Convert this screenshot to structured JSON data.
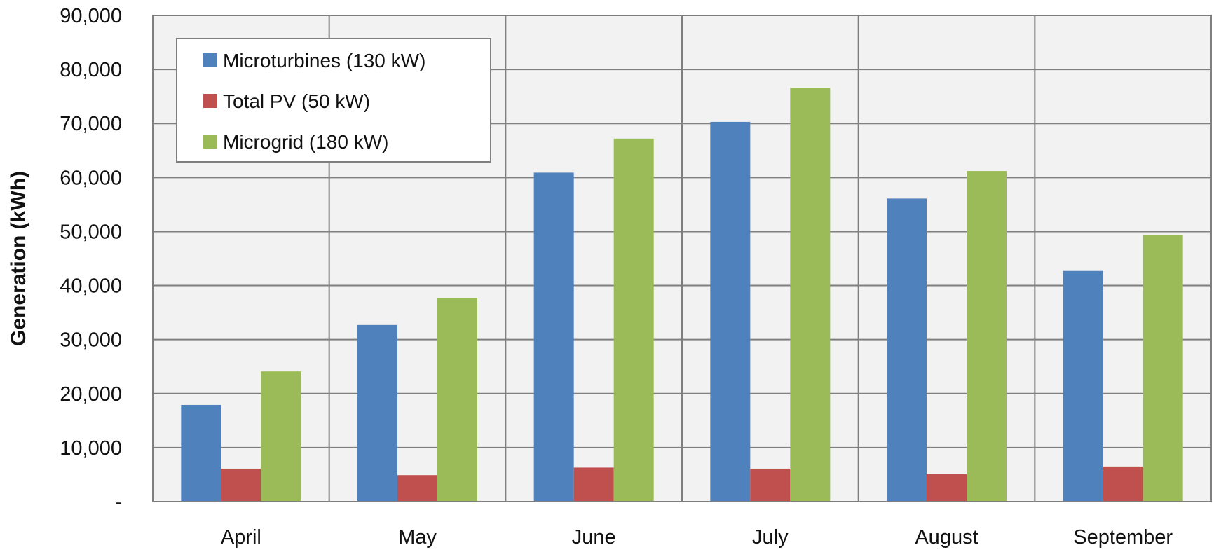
{
  "chart_data": {
    "type": "bar",
    "title": "",
    "xlabel": "",
    "ylabel": "Generation (kWh)",
    "categories": [
      "April",
      "May",
      "June",
      "July",
      "August",
      "September"
    ],
    "series": [
      {
        "name": "Microturbines (130 kW)",
        "color": "#4f81bd",
        "values": [
          17900,
          32700,
          60900,
          70300,
          56100,
          42700
        ]
      },
      {
        "name": "Total PV (50 kW)",
        "color": "#c0504d",
        "values": [
          6100,
          4900,
          6300,
          6100,
          5100,
          6500
        ]
      },
      {
        "name": "Microgrid (180 kW)",
        "color": "#9bbb59",
        "values": [
          24100,
          37700,
          67200,
          76600,
          61200,
          49300
        ]
      }
    ],
    "ylim": [
      0,
      90000
    ],
    "yticks": [
      0,
      10000,
      20000,
      30000,
      40000,
      50000,
      60000,
      70000,
      80000,
      90000
    ],
    "ytick_labels": [
      "-",
      "10,000",
      "20,000",
      "30,000",
      "40,000",
      "50,000",
      "60,000",
      "70,000",
      "80,000",
      "90,000"
    ],
    "grid": true,
    "plot_background": "#f2f2f2",
    "legend_position": "top-left"
  }
}
